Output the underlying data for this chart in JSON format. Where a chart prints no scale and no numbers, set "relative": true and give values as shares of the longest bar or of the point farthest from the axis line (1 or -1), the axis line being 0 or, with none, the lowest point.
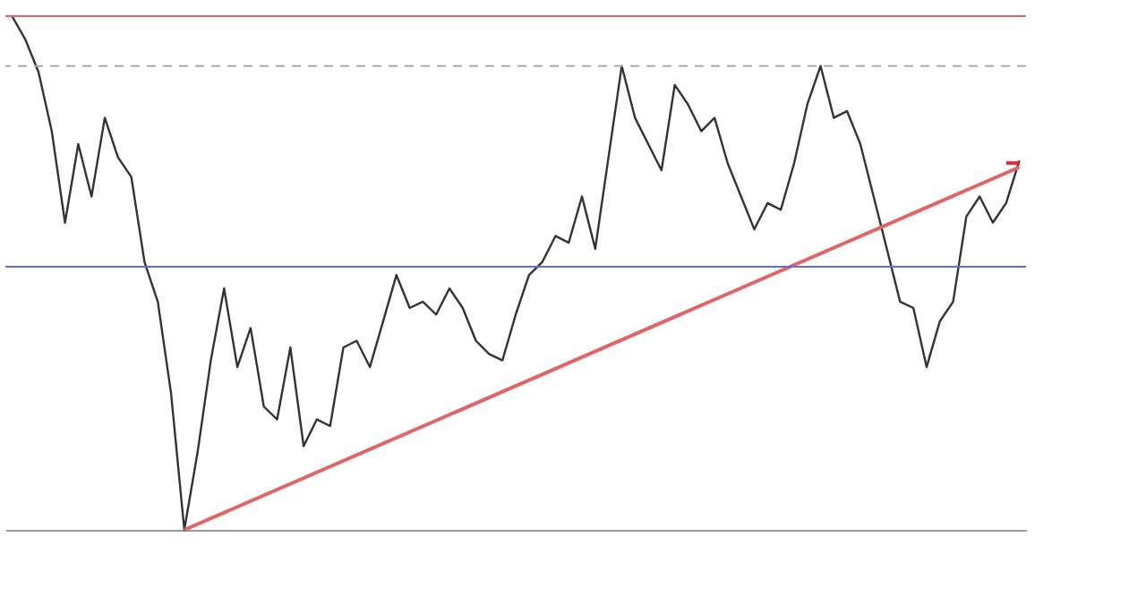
{
  "chart_data": {
    "type": "line",
    "relative": true,
    "categories": [
      null,
      null,
      null,
      null,
      null,
      null,
      null,
      null,
      null,
      null,
      null,
      null,
      null,
      null,
      null,
      null,
      null,
      null,
      null,
      null,
      null,
      null,
      null,
      null,
      null,
      null,
      null,
      null,
      null,
      null,
      null,
      null,
      null,
      null,
      null,
      null,
      null,
      null,
      null,
      null,
      null,
      null,
      null,
      null,
      null,
      null,
      null,
      null,
      null,
      null,
      null,
      null,
      null,
      null,
      null,
      null,
      null,
      null,
      null,
      null,
      null,
      null,
      null,
      null,
      null,
      null,
      null,
      null,
      null,
      null,
      null,
      null,
      null,
      null,
      null,
      null,
      null
    ],
    "series": [
      {
        "color": "#333333",
        "values": [
          1.0,
          0.955,
          0.891,
          0.776,
          0.598,
          0.751,
          0.649,
          0.802,
          0.725,
          0.687,
          0.521,
          0.444,
          0.266,
          0.0,
          0.151,
          0.33,
          0.47,
          0.317,
          0.393,
          0.24,
          0.215,
          0.355,
          0.163,
          0.215,
          0.202,
          0.355,
          0.368,
          0.317,
          0.406,
          0.496,
          0.432,
          0.444,
          0.419,
          0.47,
          0.432,
          0.368,
          0.342,
          0.33,
          0.419,
          0.496,
          0.521,
          0.572,
          0.559,
          0.649,
          0.547,
          0.725,
          0.903,
          0.802,
          0.751,
          0.7,
          0.866,
          0.828,
          0.776,
          0.802,
          0.713,
          0.649,
          0.585,
          0.636,
          0.623,
          0.713,
          0.828,
          0.903,
          0.802,
          0.815,
          0.751,
          0.649,
          0.547,
          0.444,
          0.432,
          0.317,
          0.406,
          0.444,
          0.61,
          0.649,
          0.598,
          0.636,
          0.719
        ]
      },
      {
        "color": "#e06666",
        "values": [
          null,
          null,
          null,
          null,
          null,
          null,
          null,
          null,
          null,
          null,
          null,
          null,
          null,
          0.0,
          null,
          null,
          null,
          null,
          null,
          null,
          null,
          null,
          null,
          null,
          null,
          null,
          null,
          null,
          null,
          null,
          null,
          null,
          null,
          null,
          null,
          null,
          null,
          null,
          null,
          null,
          null,
          null,
          null,
          null,
          null,
          null,
          null,
          null,
          null,
          null,
          null,
          null,
          null,
          null,
          null,
          null,
          null,
          null,
          null,
          null,
          null,
          null,
          null,
          null,
          null,
          null,
          null,
          null,
          null,
          null,
          null,
          null,
          null,
          null,
          null,
          null,
          0.706
        ]
      },
      {
        "color": "#d93030",
        "values": [
          null,
          null,
          null,
          null,
          null,
          null,
          null,
          null,
          null,
          null,
          null,
          null,
          null,
          null,
          null,
          null,
          null,
          null,
          null,
          null,
          null,
          null,
          null,
          null,
          null,
          null,
          null,
          null,
          null,
          null,
          null,
          null,
          null,
          null,
          null,
          null,
          null,
          null,
          null,
          null,
          null,
          null,
          null,
          null,
          null,
          null,
          null,
          null,
          null,
          null,
          null,
          null,
          null,
          null,
          null,
          null,
          null,
          null,
          null,
          null,
          null,
          null,
          null,
          null,
          null,
          null,
          null,
          null,
          null,
          null,
          null,
          null,
          null,
          null,
          null,
          0.714,
          0.714
        ]
      }
    ],
    "ref_lines": [
      {
        "axis": "y",
        "value": 1.0,
        "color": "#e06666"
      },
      {
        "axis": "y",
        "value": 0.512,
        "color": "#5b6ee1"
      },
      {
        "axis": "y",
        "value": 0.903,
        "color": "#aaaaaa",
        "line_style": "dashed"
      }
    ]
  }
}
